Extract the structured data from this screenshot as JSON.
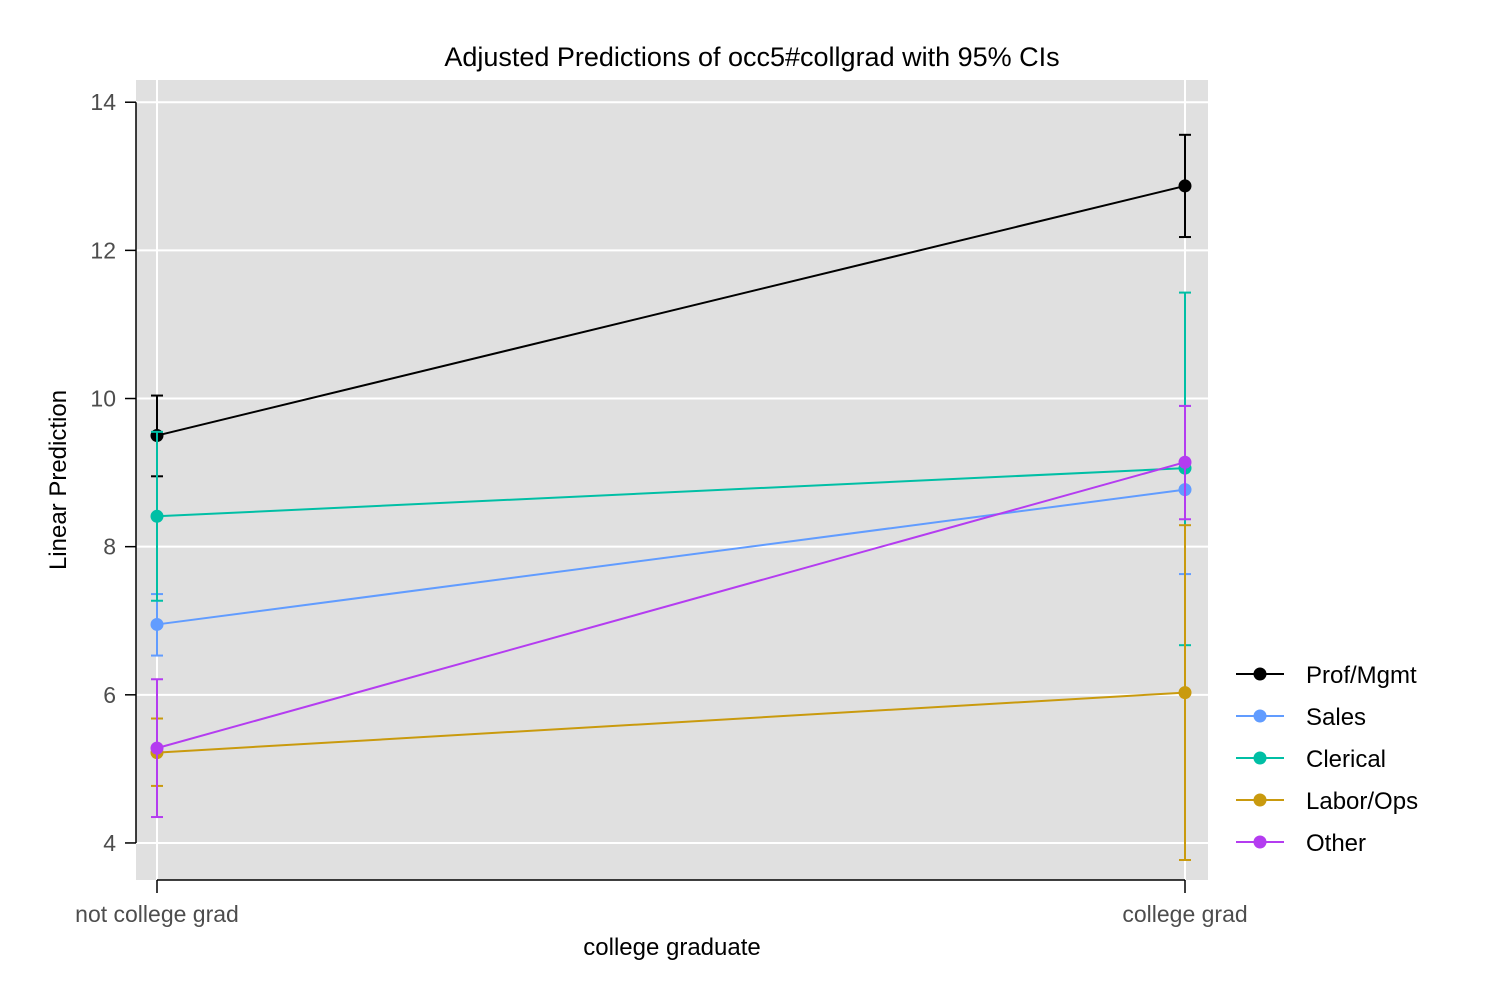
{
  "chart_data": {
    "type": "line",
    "title": "Adjusted Predictions of occ5#collgrad with 95% CIs",
    "xlabel": "college graduate",
    "ylabel": "Linear Prediction",
    "categories": [
      "not college grad",
      "college grad"
    ],
    "ylim": [
      3.5,
      14.3
    ],
    "yticks": [
      4,
      6,
      8,
      10,
      12,
      14
    ],
    "grid": true,
    "legend_position": "right",
    "background": "#e0e0e0",
    "series": [
      {
        "name": "Prof/Mgmt",
        "color": "#000000",
        "values": [
          9.5,
          12.87
        ],
        "ci_low": [
          8.95,
          12.18
        ],
        "ci_high": [
          10.04,
          13.56
        ]
      },
      {
        "name": "Sales",
        "color": "#619cff",
        "values": [
          6.95,
          8.77
        ],
        "ci_low": [
          6.53,
          7.63
        ],
        "ci_high": [
          7.36,
          9.9
        ]
      },
      {
        "name": "Clerical",
        "color": "#00bfa5",
        "values": [
          8.41,
          9.06
        ],
        "ci_low": [
          7.27,
          6.67
        ],
        "ci_high": [
          9.55,
          11.43
        ]
      },
      {
        "name": "Labor/Ops",
        "color": "#c99a0e",
        "values": [
          5.22,
          6.03
        ],
        "ci_low": [
          4.77,
          3.77
        ],
        "ci_high": [
          5.68,
          8.29
        ]
      },
      {
        "name": "Other",
        "color": "#b43cf0",
        "values": [
          5.28,
          9.14
        ],
        "ci_low": [
          4.35,
          8.37
        ],
        "ci_high": [
          6.21,
          9.9
        ]
      }
    ]
  }
}
